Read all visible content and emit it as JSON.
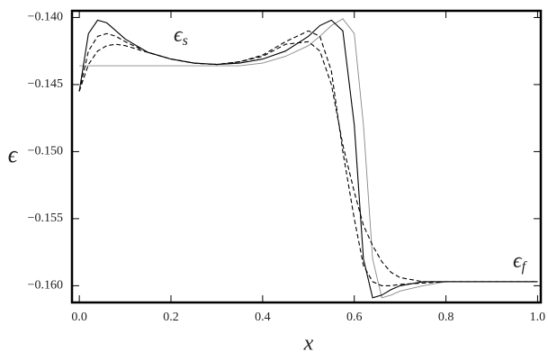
{
  "chart_data": {
    "type": "line",
    "x": [
      0,
      0.02,
      0.04,
      0.06,
      0.08,
      0.1,
      0.15,
      0.2,
      0.25,
      0.3,
      0.35,
      0.4,
      0.45,
      0.5,
      0.525,
      0.55,
      0.575,
      0.6,
      0.62,
      0.64,
      0.66,
      0.68,
      0.7,
      0.75,
      0.8,
      0.85,
      0.9,
      1.0
    ],
    "series": [
      {
        "color": "#888888",
        "dashed": false,
        "values": [
          -0.1436,
          -0.1436,
          -0.1436,
          -0.1436,
          -0.1436,
          -0.1436,
          -0.1436,
          -0.1436,
          -0.1436,
          -0.1436,
          -0.1436,
          -0.1434,
          -0.1429,
          -0.1421,
          -0.1414,
          -0.1406,
          -0.1401,
          -0.1412,
          -0.148,
          -0.158,
          -0.1609,
          -0.1607,
          -0.1604,
          -0.16,
          -0.1597,
          -0.1597,
          -0.1597,
          -0.1597
        ]
      },
      {
        "color": "#000000",
        "dashed": false,
        "values": [
          -0.1455,
          -0.1412,
          -0.1402,
          -0.1404,
          -0.141,
          -0.1416,
          -0.1426,
          -0.1431,
          -0.1434,
          -0.1435,
          -0.1434,
          -0.1431,
          -0.1425,
          -0.1414,
          -0.1406,
          -0.1402,
          -0.141,
          -0.148,
          -0.158,
          -0.1609,
          -0.1607,
          -0.1603,
          -0.16,
          -0.1597,
          -0.1597,
          -0.1597,
          -0.1597,
          -0.1597
        ]
      },
      {
        "color": "#000000",
        "dashed": true,
        "values": [
          -0.1455,
          -0.1425,
          -0.1414,
          -0.1412,
          -0.1414,
          -0.1418,
          -0.1426,
          -0.1431,
          -0.1434,
          -0.1435,
          -0.1433,
          -0.1428,
          -0.1418,
          -0.141,
          -0.1414,
          -0.144,
          -0.15,
          -0.155,
          -0.1585,
          -0.1597,
          -0.16,
          -0.16,
          -0.1599,
          -0.1598,
          -0.1597,
          -0.1597,
          -0.1597,
          -0.1597
        ]
      },
      {
        "color": "#000000",
        "dashed": true,
        "values": [
          -0.1455,
          -0.1435,
          -0.1425,
          -0.1421,
          -0.142,
          -0.1421,
          -0.1426,
          -0.1431,
          -0.1434,
          -0.1435,
          -0.1433,
          -0.1429,
          -0.142,
          -0.1418,
          -0.1425,
          -0.145,
          -0.1495,
          -0.153,
          -0.1555,
          -0.157,
          -0.1582,
          -0.159,
          -0.1594,
          -0.1597,
          -0.1597,
          -0.1597,
          -0.1597,
          -0.1597
        ]
      }
    ],
    "xlabel": "x",
    "ylabel": "ϵ",
    "xlim": [
      -0.016,
      1.007
    ],
    "ylim": [
      -0.16125,
      -0.1395
    ],
    "xticks": [
      {
        "value": 0,
        "label": "0.0"
      },
      0.2,
      0.4,
      0.6,
      0.8,
      {
        "value": 1,
        "label": "1.0"
      }
    ],
    "yticks": [
      {
        "value": -0.14,
        "label": "−0.140"
      },
      {
        "value": -0.145,
        "label": "−0.145"
      },
      {
        "value": -0.15,
        "label": "−0.150"
      },
      {
        "value": -0.155,
        "label": "−0.155"
      },
      {
        "value": -0.16,
        "label": "−0.160"
      }
    ],
    "annotations": [
      {
        "text": "ϵ",
        "subscript": "s"
      },
      {
        "text": "ϵ",
        "subscript": "f"
      }
    ]
  }
}
